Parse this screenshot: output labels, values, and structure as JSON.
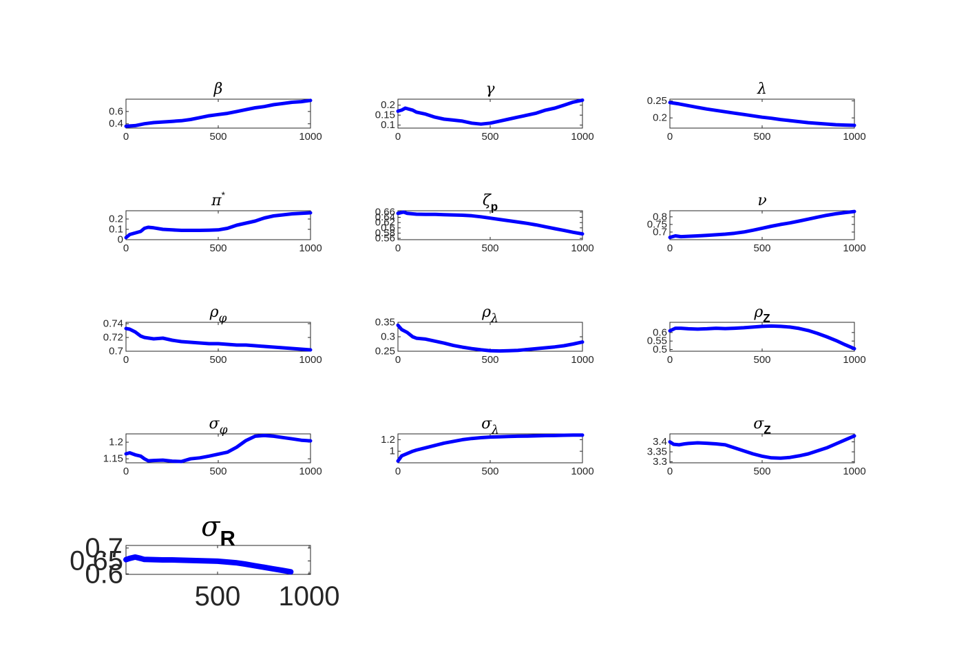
{
  "figure": {
    "background": "#ffffff",
    "line_color": "#0000ff",
    "axis_color": "#262626"
  },
  "chart_data": [
    {
      "type": "line",
      "title": "β",
      "title_sub": "",
      "title_sup": "",
      "xlim": [
        0,
        1000
      ],
      "xticks": [
        "0",
        "500",
        "1000"
      ],
      "ylim": [
        0.33,
        0.8
      ],
      "yticks": [
        0.4,
        0.6
      ],
      "ytick_labels": [
        "0.4",
        "0.6"
      ],
      "x": [
        0,
        50,
        100,
        150,
        200,
        250,
        300,
        350,
        400,
        450,
        500,
        550,
        600,
        650,
        700,
        750,
        800,
        850,
        900,
        950,
        1000
      ],
      "y": [
        0.36,
        0.37,
        0.4,
        0.42,
        0.43,
        0.44,
        0.45,
        0.47,
        0.5,
        0.53,
        0.55,
        0.57,
        0.6,
        0.63,
        0.66,
        0.68,
        0.71,
        0.73,
        0.75,
        0.76,
        0.78
      ]
    },
    {
      "type": "line",
      "title": "γ",
      "title_sub": "",
      "title_sup": "",
      "xlim": [
        0,
        1000
      ],
      "xticks": [
        "0",
        "500",
        "1000"
      ],
      "ylim": [
        0.085,
        0.23
      ],
      "yticks": [
        0.1,
        0.15,
        0.2
      ],
      "ytick_labels": [
        "0.1",
        "0.15",
        "0.2"
      ],
      "x": [
        0,
        20,
        40,
        60,
        80,
        100,
        150,
        200,
        250,
        300,
        350,
        400,
        450,
        500,
        550,
        600,
        650,
        700,
        750,
        800,
        850,
        900,
        950,
        1000
      ],
      "y": [
        0.17,
        0.175,
        0.185,
        0.18,
        0.175,
        0.165,
        0.155,
        0.14,
        0.13,
        0.125,
        0.12,
        0.11,
        0.105,
        0.11,
        0.12,
        0.13,
        0.14,
        0.15,
        0.16,
        0.175,
        0.185,
        0.2,
        0.215,
        0.225
      ]
    },
    {
      "type": "line",
      "title": "λ",
      "title_sub": "",
      "title_sup": "",
      "xlim": [
        0,
        1000
      ],
      "xticks": [
        "0",
        "500",
        "1000"
      ],
      "ylim": [
        0.17,
        0.255
      ],
      "yticks": [
        0.2,
        0.25
      ],
      "ytick_labels": [
        "0.2",
        "0.25"
      ],
      "x": [
        0,
        50,
        100,
        150,
        200,
        250,
        300,
        350,
        400,
        450,
        500,
        550,
        600,
        650,
        700,
        750,
        800,
        850,
        900,
        950,
        1000
      ],
      "y": [
        0.245,
        0.241,
        0.236,
        0.231,
        0.226,
        0.222,
        0.218,
        0.214,
        0.21,
        0.206,
        0.202,
        0.199,
        0.195,
        0.192,
        0.189,
        0.186,
        0.184,
        0.182,
        0.18,
        0.179,
        0.178
      ]
    },
    {
      "type": "line",
      "title": "π",
      "title_sub": "",
      "title_sup": "*",
      "xlim": [
        0,
        1000
      ],
      "xticks": [
        "0",
        "500",
        "1000"
      ],
      "ylim": [
        0,
        0.28
      ],
      "yticks": [
        0,
        0.1,
        0.2
      ],
      "ytick_labels": [
        "0",
        "0.1",
        "0.2"
      ],
      "x": [
        0,
        20,
        40,
        60,
        80,
        100,
        120,
        150,
        200,
        250,
        300,
        350,
        400,
        450,
        500,
        550,
        600,
        650,
        700,
        750,
        800,
        850,
        900,
        950,
        1000
      ],
      "y": [
        0.02,
        0.05,
        0.06,
        0.07,
        0.08,
        0.11,
        0.12,
        0.115,
        0.1,
        0.095,
        0.09,
        0.09,
        0.09,
        0.092,
        0.095,
        0.11,
        0.14,
        0.16,
        0.18,
        0.21,
        0.23,
        0.24,
        0.25,
        0.255,
        0.26
      ]
    },
    {
      "type": "line",
      "title": "ζ",
      "title_sub": "p",
      "title_sup": "",
      "xlim": [
        0,
        1000
      ],
      "xticks": [
        "0",
        "500",
        "1000"
      ],
      "ylim": [
        0.555,
        0.665
      ],
      "yticks": [
        0.56,
        0.58,
        0.6,
        0.62,
        0.64,
        0.66
      ],
      "ytick_labels": [
        "0.56",
        "0.58",
        "0.6",
        "0.62",
        "0.64",
        "0.66"
      ],
      "x": [
        0,
        30,
        50,
        100,
        150,
        200,
        250,
        300,
        350,
        400,
        450,
        500,
        550,
        600,
        650,
        700,
        750,
        800,
        850,
        900,
        950,
        1000
      ],
      "y": [
        0.655,
        0.66,
        0.655,
        0.652,
        0.651,
        0.651,
        0.65,
        0.649,
        0.648,
        0.646,
        0.642,
        0.637,
        0.632,
        0.627,
        0.622,
        0.617,
        0.611,
        0.604,
        0.597,
        0.59,
        0.583,
        0.577
      ]
    },
    {
      "type": "line",
      "title": "ν",
      "title_sub": "",
      "title_sup": "",
      "xlim": [
        0,
        1000
      ],
      "xticks": [
        "0",
        "500",
        "1000"
      ],
      "ylim": [
        0.65,
        0.84
      ],
      "yticks": [
        0.7,
        0.75,
        0.8
      ],
      "ytick_labels": [
        "0.7",
        "0.75",
        "0.8"
      ],
      "x": [
        0,
        30,
        60,
        100,
        150,
        200,
        250,
        300,
        350,
        400,
        450,
        500,
        550,
        600,
        650,
        700,
        750,
        800,
        850,
        900,
        950,
        1000
      ],
      "y": [
        0.665,
        0.675,
        0.67,
        0.672,
        0.675,
        0.678,
        0.682,
        0.686,
        0.692,
        0.7,
        0.712,
        0.725,
        0.738,
        0.75,
        0.76,
        0.772,
        0.785,
        0.798,
        0.81,
        0.82,
        0.828,
        0.835
      ]
    },
    {
      "type": "line",
      "title": "ρ",
      "title_sub": "φ",
      "title_sup": "",
      "xlim": [
        0,
        1000
      ],
      "xticks": [
        "0",
        "500",
        "1000"
      ],
      "ylim": [
        0.7,
        0.742
      ],
      "yticks": [
        0.7,
        0.72,
        0.74
      ],
      "ytick_labels": [
        "0.7",
        "0.72",
        "0.74"
      ],
      "x": [
        0,
        20,
        50,
        80,
        100,
        150,
        200,
        250,
        300,
        350,
        400,
        450,
        500,
        550,
        600,
        650,
        700,
        750,
        800,
        850,
        900,
        950,
        1000
      ],
      "y": [
        0.733,
        0.732,
        0.728,
        0.722,
        0.72,
        0.718,
        0.719,
        0.716,
        0.714,
        0.713,
        0.712,
        0.711,
        0.711,
        0.71,
        0.709,
        0.709,
        0.708,
        0.707,
        0.706,
        0.705,
        0.704,
        0.703,
        0.702
      ]
    },
    {
      "type": "line",
      "title": "ρ",
      "title_sub": "λ",
      "title_sup": "",
      "xlim": [
        0,
        1000
      ],
      "xticks": [
        "0",
        "500",
        "1000"
      ],
      "ylim": [
        0.25,
        0.35
      ],
      "yticks": [
        0.25,
        0.3,
        0.35
      ],
      "ytick_labels": [
        "0.25",
        "0.3",
        "0.35"
      ],
      "x": [
        0,
        20,
        50,
        80,
        100,
        150,
        200,
        250,
        300,
        350,
        400,
        450,
        500,
        550,
        600,
        650,
        700,
        750,
        800,
        850,
        900,
        950,
        1000
      ],
      "y": [
        0.34,
        0.325,
        0.315,
        0.3,
        0.295,
        0.292,
        0.285,
        0.278,
        0.27,
        0.264,
        0.259,
        0.255,
        0.252,
        0.251,
        0.252,
        0.253,
        0.256,
        0.259,
        0.262,
        0.265,
        0.269,
        0.275,
        0.282
      ]
    },
    {
      "type": "line",
      "title": "ρ",
      "title_sub": "Z",
      "title_sup": "",
      "xlim": [
        0,
        1000
      ],
      "xticks": [
        "0",
        "500",
        "1000"
      ],
      "ylim": [
        0.49,
        0.66
      ],
      "yticks": [
        0.5,
        0.55,
        0.6
      ],
      "ytick_labels": [
        "0.5",
        "0.55",
        "0.6"
      ],
      "x": [
        0,
        30,
        60,
        100,
        150,
        200,
        250,
        300,
        350,
        400,
        450,
        500,
        550,
        600,
        650,
        700,
        750,
        800,
        850,
        900,
        950,
        1000
      ],
      "y": [
        0.61,
        0.625,
        0.625,
        0.622,
        0.62,
        0.622,
        0.625,
        0.623,
        0.625,
        0.628,
        0.632,
        0.636,
        0.638,
        0.636,
        0.632,
        0.624,
        0.612,
        0.595,
        0.575,
        0.553,
        0.528,
        0.505
      ]
    },
    {
      "type": "line",
      "title": "σ",
      "title_sub": "φ",
      "title_sup": "",
      "xlim": [
        0,
        1000
      ],
      "xticks": [
        "0",
        "500",
        "1000"
      ],
      "ylim": [
        1.138,
        1.225
      ],
      "yticks": [
        1.15,
        1.2
      ],
      "ytick_labels": [
        "1.15",
        "1.2"
      ],
      "x": [
        0,
        20,
        50,
        80,
        100,
        120,
        150,
        200,
        250,
        300,
        350,
        400,
        450,
        500,
        550,
        600,
        650,
        700,
        750,
        800,
        850,
        900,
        950,
        1000
      ],
      "y": [
        1.165,
        1.168,
        1.162,
        1.158,
        1.15,
        1.144,
        1.145,
        1.146,
        1.143,
        1.142,
        1.15,
        1.153,
        1.158,
        1.164,
        1.17,
        1.185,
        1.205,
        1.218,
        1.22,
        1.218,
        1.214,
        1.21,
        1.206,
        1.204
      ]
    },
    {
      "type": "line",
      "title": "σ",
      "title_sub": "λ",
      "title_sup": "",
      "xlim": [
        0,
        1000
      ],
      "xticks": [
        "0",
        "500",
        "1000"
      ],
      "ylim": [
        0.8,
        1.3
      ],
      "yticks": [
        1,
        1.2
      ],
      "ytick_labels": [
        "1",
        "1.2"
      ],
      "x": [
        0,
        20,
        50,
        80,
        100,
        150,
        200,
        250,
        300,
        350,
        400,
        450,
        500,
        550,
        600,
        650,
        700,
        750,
        800,
        850,
        900,
        950,
        1000
      ],
      "y": [
        0.83,
        0.92,
        0.96,
        1.0,
        1.02,
        1.06,
        1.1,
        1.14,
        1.17,
        1.2,
        1.22,
        1.235,
        1.245,
        1.25,
        1.255,
        1.26,
        1.262,
        1.265,
        1.27,
        1.272,
        1.276,
        1.278,
        1.278
      ]
    },
    {
      "type": "line",
      "title": "σ",
      "title_sub": "Z",
      "title_sup": "",
      "xlim": [
        0,
        1000
      ],
      "xticks": [
        "0",
        "500",
        "1000"
      ],
      "ylim": [
        3.295,
        3.44
      ],
      "yticks": [
        3.3,
        3.35,
        3.4
      ],
      "ytick_labels": [
        "3.3",
        "3.35",
        "3.4"
      ],
      "x": [
        0,
        20,
        50,
        80,
        100,
        150,
        200,
        250,
        300,
        350,
        400,
        450,
        500,
        550,
        600,
        650,
        700,
        750,
        800,
        850,
        900,
        950,
        1000
      ],
      "y": [
        3.4,
        3.388,
        3.385,
        3.39,
        3.392,
        3.395,
        3.393,
        3.39,
        3.385,
        3.37,
        3.355,
        3.34,
        3.328,
        3.32,
        3.318,
        3.322,
        3.33,
        3.34,
        3.355,
        3.37,
        3.39,
        3.41,
        3.43
      ]
    },
    {
      "type": "line",
      "title": "σ",
      "title_sub": "R",
      "title_sup": "",
      "xlim": [
        0,
        1000
      ],
      "xticks": [
        "500",
        "1000"
      ],
      "ylim": [
        0.598,
        0.71
      ],
      "yticks": [
        0.6,
        0.65,
        0.7
      ],
      "ytick_labels": [
        "0.6",
        "0.65",
        "0.7"
      ],
      "x": [
        0,
        20,
        50,
        80,
        100,
        150,
        200,
        250,
        300,
        350,
        400,
        450,
        500,
        550,
        600,
        650,
        700,
        750,
        800,
        850,
        900
      ],
      "y": [
        0.655,
        0.66,
        0.665,
        0.66,
        0.656,
        0.655,
        0.654,
        0.654,
        0.653,
        0.652,
        0.651,
        0.65,
        0.649,
        0.646,
        0.643,
        0.638,
        0.632,
        0.626,
        0.62,
        0.614,
        0.608
      ]
    }
  ]
}
